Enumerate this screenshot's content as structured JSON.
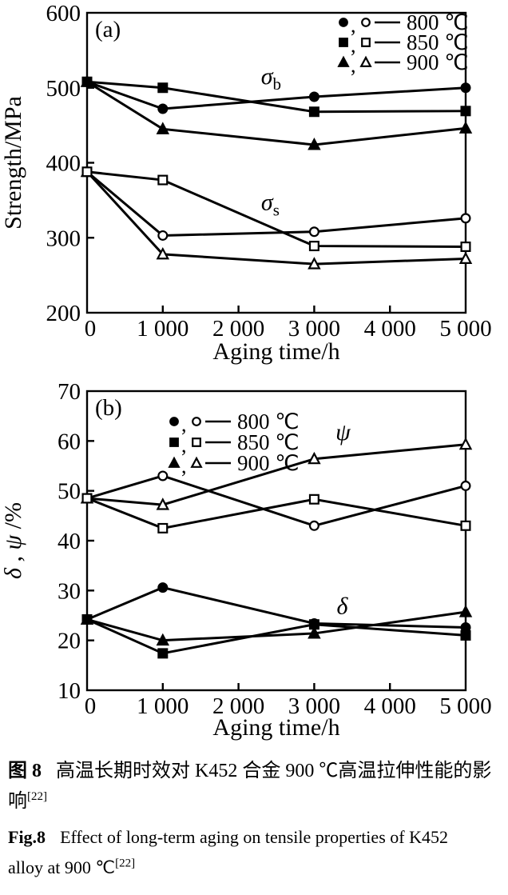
{
  "caption": {
    "cn_label": "图 8",
    "cn_text": "高温长期时效对 K452 合金 900 ℃高温拉伸性能的影",
    "cn_text2": "响",
    "en_label": "Fig.8",
    "en_text": "Effect of long-term aging on tensile properties of K452",
    "en_text2": "alloy at 900 ℃",
    "ref": "[22]"
  },
  "chart_data": [
    {
      "type": "line",
      "panel": "(a)",
      "xlabel": "Aging time/h",
      "ylabel": "Strength/MPa",
      "ylabel_parts": [
        {
          "text": "Strength/MPa",
          "italic": false
        }
      ],
      "x": [
        0,
        1000,
        3000,
        5000
      ],
      "xlim": [
        0,
        5000
      ],
      "ylim": [
        200,
        600
      ],
      "xticks": [
        0,
        1000,
        2000,
        3000,
        4000,
        5000
      ],
      "xtick_labels": [
        "0",
        "1 000",
        "2 000",
        "3 000",
        "4 000",
        "5 000"
      ],
      "yticks": [
        200,
        300,
        400,
        500,
        600
      ],
      "ytick_labels": [
        "200",
        "300",
        "400",
        "500",
        "600"
      ],
      "grid": false,
      "legend_position": "top-right",
      "legend": [
        {
          "marker": "circle",
          "label": "800 ℃"
        },
        {
          "marker": "square",
          "label": "850 ℃"
        },
        {
          "marker": "triangle",
          "label": "900 ℃"
        }
      ],
      "groups": [
        {
          "name": "sigma_b (ultimate tensile strength)",
          "annotation": {
            "text": "σ",
            "sub": "b",
            "x": 2430,
            "y": 505
          },
          "series": [
            {
              "name": "800 ℃",
              "marker": "circle",
              "fill": "filled",
              "values": [
                508,
                472,
                488,
                500
              ]
            },
            {
              "name": "850 ℃",
              "marker": "square",
              "fill": "filled",
              "values": [
                508,
                500,
                468,
                469
              ]
            },
            {
              "name": "900 ℃",
              "marker": "triangle",
              "fill": "filled",
              "values": [
                508,
                445,
                424,
                446
              ]
            }
          ]
        },
        {
          "name": "sigma_s (yield strength)",
          "annotation": {
            "text": "σ",
            "sub": "s",
            "x": 2420,
            "y": 337
          },
          "series": [
            {
              "name": "800 ℃",
              "marker": "circle",
              "fill": "open",
              "values": [
                388,
                303,
                308,
                326
              ]
            },
            {
              "name": "850 ℃",
              "marker": "square",
              "fill": "open",
              "values": [
                388,
                377,
                289,
                288
              ]
            },
            {
              "name": "900 ℃",
              "marker": "triangle",
              "fill": "open",
              "values": [
                388,
                278,
                265,
                272
              ]
            }
          ]
        }
      ]
    },
    {
      "type": "line",
      "panel": "(b)",
      "xlabel": "Aging time/h",
      "ylabel": "δ , ψ /%",
      "ylabel_parts": [
        {
          "text": "δ",
          "italic": true
        },
        {
          "text": " , ",
          "italic": false
        },
        {
          "text": "ψ",
          "italic": true
        },
        {
          "text": " /%",
          "italic": false
        }
      ],
      "x": [
        0,
        1000,
        3000,
        5000
      ],
      "xlim": [
        0,
        5000
      ],
      "ylim": [
        10,
        70
      ],
      "xticks": [
        0,
        1000,
        2000,
        3000,
        4000,
        5000
      ],
      "xtick_labels": [
        "0",
        "1 000",
        "2 000",
        "3 000",
        "4 000",
        "5 000"
      ],
      "yticks": [
        10,
        20,
        30,
        40,
        50,
        60,
        70
      ],
      "ytick_labels": [
        "10",
        "20",
        "30",
        "40",
        "50",
        "60",
        "70"
      ],
      "grid": false,
      "legend_position": "top-left",
      "legend": [
        {
          "marker": "circle",
          "label": "800 ℃"
        },
        {
          "marker": "square",
          "label": "850 ℃"
        },
        {
          "marker": "triangle",
          "label": "900 ℃"
        }
      ],
      "groups": [
        {
          "name": "psi (reduction of area)",
          "annotation": {
            "text": "ψ",
            "sub": "",
            "x": 3380,
            "y": 60.2
          },
          "series": [
            {
              "name": "800 ℃",
              "marker": "circle",
              "fill": "open",
              "values": [
                48.5,
                53,
                43,
                51
              ]
            },
            {
              "name": "850 ℃",
              "marker": "square",
              "fill": "open",
              "values": [
                48.5,
                42.5,
                48.3,
                43
              ]
            },
            {
              "name": "900 ℃",
              "marker": "triangle",
              "fill": "open",
              "values": [
                48.5,
                47.2,
                56.4,
                59.3
              ]
            }
          ]
        },
        {
          "name": "delta (elongation)",
          "annotation": {
            "text": "δ",
            "sub": "",
            "x": 3370,
            "y": 25.3
          },
          "series": [
            {
              "name": "800 ℃",
              "marker": "circle",
              "fill": "filled",
              "values": [
                24.2,
                30.6,
                23.4,
                22.6
              ]
            },
            {
              "name": "850 ℃",
              "marker": "square",
              "fill": "filled",
              "values": [
                24.2,
                17.4,
                23.2,
                21.0
              ]
            },
            {
              "name": "900 ℃",
              "marker": "triangle",
              "fill": "filled",
              "values": [
                24.2,
                20.0,
                21.4,
                25.7
              ]
            }
          ]
        }
      ]
    }
  ],
  "colors": {
    "ink": "#000000",
    "paper": "#ffffff"
  }
}
